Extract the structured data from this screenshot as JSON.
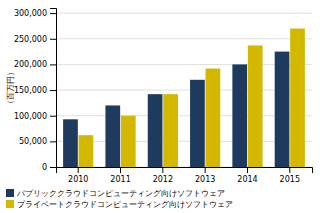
{
  "chart_data": {
    "type": "bar",
    "categories": [
      "2010",
      "2011",
      "2012",
      "2013",
      "2014",
      "2015"
    ],
    "series": [
      {
        "name": "パブリッククラウドコンピューティング向けソフトウェア",
        "color": "#1e3a5f",
        "values": [
          93000,
          120000,
          142000,
          170000,
          200000,
          225000
        ]
      },
      {
        "name": "プライベートクラウドコンピューティング向けソフトウェア",
        "color": "#d4b800",
        "values": [
          62000,
          100000,
          142000,
          192000,
          237000,
          270000
        ]
      }
    ],
    "ylabel": "（百万円）",
    "ylim": [
      0,
      310000
    ],
    "yticks": [
      0,
      {
        "value": 50000,
        "label": "50,000"
      },
      {
        "value": 100000,
        "label": "100,000"
      },
      {
        "value": 150000,
        "label": "150,000"
      },
      {
        "value": 200000,
        "label": "200,000"
      },
      {
        "value": 250000,
        "label": "250,000"
      },
      {
        "value": 300000,
        "label": "300,000"
      }
    ],
    "grid": true,
    "legend": "bottom"
  }
}
